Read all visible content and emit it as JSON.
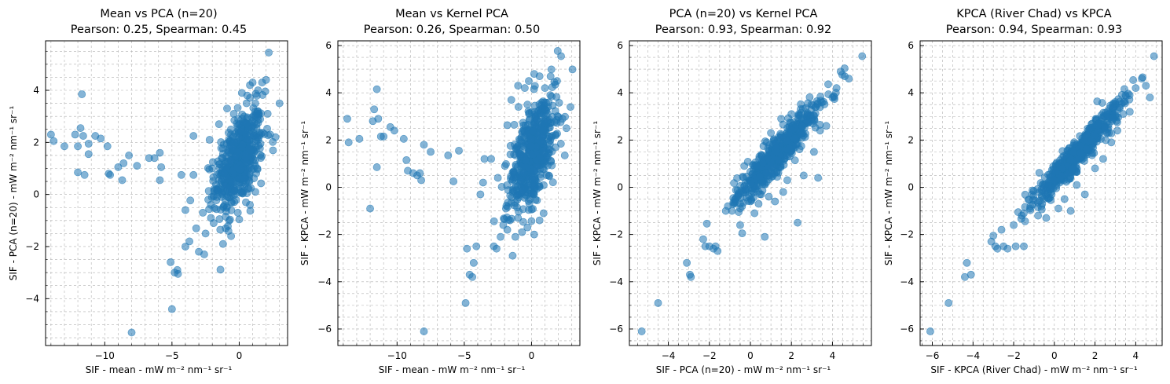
{
  "figure": {
    "background": "#ffffff"
  },
  "style": {
    "marker_color": "#1f77b4",
    "marker_alpha": 0.55,
    "grid_color": "#b0b0b0"
  },
  "chart_data": [
    {
      "type": "scatter",
      "title": "Mean vs PCA (n=20)",
      "subtitle": "Pearson: 0.25, Spearman: 0.45",
      "xlabel": "SIF - mean - mW m⁻² nm⁻¹ sr⁻¹",
      "ylabel": "SIF - PCA (n=20) - mW m⁻² nm⁻¹ sr⁻¹",
      "xlim": [
        -14.4,
        3.6
      ],
      "ylim": [
        -5.8,
        5.9
      ],
      "xticks": [
        -10,
        -5,
        0
      ],
      "yticks": [
        -4,
        -2,
        0,
        2,
        4
      ],
      "grid": true,
      "cluster": {
        "cx": 0.0,
        "cy": 1.3,
        "sx": 0.9,
        "sy": 0.95,
        "r": 0.5,
        "n": 520
      },
      "points": [
        [
          -14,
          2.3
        ],
        [
          -13.8,
          2.05
        ],
        [
          -13,
          1.85
        ],
        [
          -12.2,
          2.3
        ],
        [
          -11.8,
          2.55
        ],
        [
          -11.7,
          3.85
        ],
        [
          -11.6,
          2.25
        ],
        [
          -11.2,
          1.95
        ],
        [
          -10.7,
          2.25
        ],
        [
          -10.3,
          2.15
        ],
        [
          -9.8,
          1.85
        ],
        [
          -9.7,
          0.8
        ],
        [
          -9.6,
          0.75
        ],
        [
          -9,
          1.05
        ],
        [
          -8.7,
          0.55
        ],
        [
          -8.6,
          1.2
        ],
        [
          -8.2,
          1.5
        ],
        [
          -8,
          -5.3
        ],
        [
          -7.6,
          1.1
        ],
        [
          -6.7,
          1.4
        ],
        [
          -6.3,
          1.4
        ],
        [
          -5.9,
          1.6
        ],
        [
          -5.8,
          1.05
        ],
        [
          -5.9,
          0.55
        ],
        [
          -12,
          0.85
        ],
        [
          -11.5,
          0.75
        ],
        [
          -11.2,
          1.55
        ],
        [
          -12,
          1.85
        ],
        [
          -5.1,
          -2.6
        ],
        [
          -5,
          -4.4
        ],
        [
          -4.8,
          -3.0
        ],
        [
          -4.6,
          -2.9
        ],
        [
          -4.55,
          -3.05
        ],
        [
          -4.3,
          0.75
        ],
        [
          -4,
          -0.6
        ],
        [
          -4,
          -2.0
        ],
        [
          -3.7,
          -1.8
        ],
        [
          -3.4,
          2.25
        ],
        [
          -3.4,
          0.75
        ],
        [
          -3.2,
          -1.3
        ],
        [
          -3.0,
          -2.2
        ],
        [
          -2.7,
          -0.7
        ],
        [
          -2.6,
          -2.3
        ],
        [
          -2.5,
          -1.5
        ],
        [
          -2.3,
          -0.2
        ],
        [
          -2.2,
          2.1
        ],
        [
          -2.1,
          -0.9
        ],
        [
          -2.0,
          1.0
        ],
        [
          -1.9,
          -1.1
        ],
        [
          -1.7,
          0.2
        ],
        [
          -1.5,
          2.7
        ],
        [
          -1.3,
          1.4
        ],
        [
          -1.2,
          -1.9
        ],
        [
          -1.0,
          -1.3
        ],
        [
          -0.9,
          3.3
        ],
        [
          -0.8,
          -1.4
        ],
        [
          -0.6,
          -1.6
        ],
        [
          -0.4,
          3.1
        ],
        [
          0.2,
          3.9
        ],
        [
          0.6,
          3.8
        ],
        [
          0.8,
          4.2
        ],
        [
          1.0,
          4.3
        ],
        [
          1.2,
          3.5
        ],
        [
          1.4,
          4.0
        ],
        [
          1.7,
          4.3
        ],
        [
          2.0,
          4.4
        ],
        [
          2.2,
          5.45
        ],
        [
          2.3,
          2.3
        ],
        [
          2.7,
          2.2
        ],
        [
          3.0,
          3.5
        ],
        [
          1.2,
          0.1
        ],
        [
          0.8,
          -0.4
        ],
        [
          0.5,
          -0.3
        ],
        [
          -0.1,
          -0.7
        ],
        [
          0.3,
          2.8
        ],
        [
          1.4,
          3.2
        ]
      ]
    },
    {
      "type": "scatter",
      "title": "Mean vs Kernel PCA",
      "subtitle": "Pearson: 0.26, Spearman: 0.50",
      "xlabel": "SIF - mean - mW m⁻² nm⁻¹ sr⁻¹",
      "ylabel": "SIF - KPCA - mW m⁻² nm⁻¹ sr⁻¹",
      "xlim": [
        -14.4,
        3.6
      ],
      "ylim": [
        -6.7,
        6.2
      ],
      "xticks": [
        -10,
        -5,
        0
      ],
      "yticks": [
        -6,
        -4,
        -2,
        0,
        2,
        4,
        6
      ],
      "grid": true,
      "cluster": {
        "cx": 0.1,
        "cy": 1.4,
        "sx": 0.9,
        "sy": 1.2,
        "r": 0.55,
        "n": 540
      },
      "points": [
        [
          -13.7,
          2.9
        ],
        [
          -13.6,
          1.9
        ],
        [
          -12.8,
          2.05
        ],
        [
          -12.0,
          -0.9
        ],
        [
          -11.8,
          2.8
        ],
        [
          -11.7,
          3.3
        ],
        [
          -11.5,
          4.15
        ],
        [
          -11.4,
          2.9
        ],
        [
          -11.2,
          2.15
        ],
        [
          -11.0,
          2.15
        ],
        [
          -10.5,
          2.55
        ],
        [
          -10.2,
          2.4
        ],
        [
          -9.5,
          2.05
        ],
        [
          -9.3,
          1.15
        ],
        [
          -9.2,
          0.7
        ],
        [
          -8.8,
          0.6
        ],
        [
          -8.5,
          0.5
        ],
        [
          -8.3,
          0.6
        ],
        [
          -8.2,
          0.3
        ],
        [
          -7.5,
          1.5
        ],
        [
          -6.2,
          1.35
        ],
        [
          -5.8,
          0.25
        ],
        [
          -5.4,
          1.55
        ],
        [
          -11.5,
          0.85
        ],
        [
          -8.0,
          -6.1
        ],
        [
          -8.0,
          1.8
        ],
        [
          -4.9,
          -4.9
        ],
        [
          -4.8,
          -2.6
        ],
        [
          -4.6,
          -3.7
        ],
        [
          -4.4,
          -3.8
        ],
        [
          -4.3,
          -3.2
        ],
        [
          -4.1,
          -2.5
        ],
        [
          -3.8,
          -0.3
        ],
        [
          -3.6,
          0.2
        ],
        [
          -3.5,
          1.2
        ],
        [
          -3.0,
          1.2
        ],
        [
          -2.8,
          -2.5
        ],
        [
          -2.6,
          -2.6
        ],
        [
          -2.5,
          0.4
        ],
        [
          -2.3,
          -2.1
        ],
        [
          -2.1,
          -1.6
        ],
        [
          -1.9,
          -0.9
        ],
        [
          -1.8,
          -1.8
        ],
        [
          -1.6,
          -1.4
        ],
        [
          -1.4,
          -2.9
        ],
        [
          -1.2,
          -2.1
        ],
        [
          -1.0,
          -1.3
        ],
        [
          -0.7,
          -1.9
        ],
        [
          -0.3,
          -1.7
        ],
        [
          0.2,
          -2.0
        ],
        [
          0.6,
          -1.4
        ],
        [
          0.9,
          -1.1
        ],
        [
          -0.5,
          4.2
        ],
        [
          -0.2,
          4.5
        ],
        [
          0.2,
          4.8
        ],
        [
          0.6,
          4.7
        ],
        [
          1.0,
          4.2
        ],
        [
          1.4,
          3.9
        ],
        [
          1.9,
          4.5
        ],
        [
          2.2,
          5.55
        ],
        [
          2.3,
          2.9
        ],
        [
          2.6,
          2.5
        ],
        [
          2.9,
          3.4
        ],
        [
          -1.5,
          3.7
        ],
        [
          -1.0,
          4.3
        ],
        [
          -0.3,
          3.5
        ],
        [
          1.7,
          4.45
        ]
      ]
    },
    {
      "type": "scatter",
      "title": "PCA (n=20) vs Kernel PCA",
      "subtitle": "Pearson: 0.93, Spearman: 0.92",
      "xlabel": "SIF - PCA (n=20) - mW m⁻² nm⁻¹ sr⁻¹",
      "ylabel": "SIF - KPCA - mW m⁻² nm⁻¹ sr⁻¹",
      "xlim": [
        -5.9,
        5.9
      ],
      "ylim": [
        -6.7,
        6.2
      ],
      "xticks": [
        -4,
        -2,
        0,
        2,
        4
      ],
      "yticks": [
        -6,
        -4,
        -2,
        0,
        2,
        4,
        6
      ],
      "grid": true,
      "cluster": {
        "cx": 1.3,
        "cy": 1.4,
        "sx": 1.0,
        "sy": 1.05,
        "r": 0.93,
        "n": 560
      },
      "points": [
        [
          -5.3,
          -6.1
        ],
        [
          -4.5,
          -4.9
        ],
        [
          -3.1,
          -3.2
        ],
        [
          -2.95,
          -3.7
        ],
        [
          -2.9,
          -3.8
        ],
        [
          -2.3,
          -2.2
        ],
        [
          -2.2,
          -2.5
        ],
        [
          -2.0,
          -2.5
        ],
        [
          -1.8,
          -2.6
        ],
        [
          -1.7,
          -2.5
        ],
        [
          -1.6,
          -2.7
        ],
        [
          -1.2,
          -1.0
        ],
        [
          -1.1,
          -0.8
        ],
        [
          -0.9,
          -1.0
        ],
        [
          -0.6,
          -0.3
        ],
        [
          -0.5,
          -0.9
        ],
        [
          -0.5,
          -1.6
        ],
        [
          -0.4,
          -1.95
        ],
        [
          -0.3,
          0.9
        ],
        [
          0.2,
          -1.1
        ],
        [
          0.4,
          -0.7
        ],
        [
          0.7,
          -2.1
        ],
        [
          0.9,
          -0.4
        ],
        [
          1.2,
          -0.6
        ],
        [
          1.6,
          -0.2
        ],
        [
          1.8,
          0.3
        ],
        [
          2.3,
          -1.5
        ],
        [
          2.6,
          0.5
        ],
        [
          3.1,
          1.5
        ],
        [
          3.3,
          0.4
        ],
        [
          3.4,
          2.4
        ],
        [
          3.7,
          2.6
        ],
        [
          4.0,
          3.8
        ],
        [
          4.2,
          4.2
        ],
        [
          4.4,
          4.9
        ],
        [
          4.6,
          4.7
        ],
        [
          4.8,
          4.6
        ],
        [
          5.45,
          5.55
        ],
        [
          -0.6,
          -0.35
        ],
        [
          0.0,
          0.15
        ],
        [
          0.3,
          0.9
        ],
        [
          0.8,
          1.9
        ],
        [
          1.0,
          2.3
        ],
        [
          1.5,
          2.9
        ],
        [
          2.0,
          3.1
        ]
      ]
    },
    {
      "type": "scatter",
      "title": "KPCA (River Chad) vs KPCA",
      "subtitle": "Pearson: 0.94, Spearman: 0.93",
      "xlabel": "SIF - KPCA (River Chad) - mW m⁻² nm⁻¹ sr⁻¹",
      "ylabel": "SIF - KPCA - mW m⁻² nm⁻¹ sr⁻¹",
      "xlim": [
        -6.6,
        5.3
      ],
      "ylim": [
        -6.7,
        6.2
      ],
      "xticks": [
        -6,
        -4,
        -2,
        0,
        2,
        4
      ],
      "yticks": [
        -6,
        -4,
        -2,
        0,
        2,
        4,
        6
      ],
      "grid": true,
      "cluster": {
        "cx": 1.1,
        "cy": 1.4,
        "sx": 1.05,
        "sy": 1.05,
        "r": 0.95,
        "n": 560
      },
      "points": [
        [
          -6.1,
          -6.1
        ],
        [
          -5.2,
          -4.9
        ],
        [
          -4.4,
          -3.8
        ],
        [
          -4.3,
          -3.2
        ],
        [
          -4.1,
          -3.7
        ],
        [
          -3.1,
          -2.3
        ],
        [
          -3.0,
          -2.05
        ],
        [
          -2.9,
          -2.5
        ],
        [
          -2.8,
          -2.6
        ],
        [
          -2.6,
          -1.8
        ],
        [
          -2.5,
          -2.5
        ],
        [
          -2.3,
          -2.6
        ],
        [
          -2.0,
          -1.6
        ],
        [
          -1.9,
          -2.5
        ],
        [
          -1.6,
          -1.2
        ],
        [
          -1.5,
          -2.5
        ],
        [
          -1.2,
          -0.9
        ],
        [
          -1.1,
          -0.3
        ],
        [
          -0.8,
          -1.2
        ],
        [
          -0.6,
          -0.7
        ],
        [
          -0.4,
          -1.3
        ],
        [
          -0.2,
          -0.1
        ],
        [
          0.2,
          -0.9
        ],
        [
          0.5,
          -0.5
        ],
        [
          0.8,
          -1.0
        ],
        [
          1.1,
          0.1
        ],
        [
          1.5,
          -0.3
        ],
        [
          2.0,
          0.8
        ],
        [
          2.4,
          1.2
        ],
        [
          2.8,
          1.9
        ],
        [
          3.1,
          2.4
        ],
        [
          3.4,
          3.6
        ],
        [
          3.7,
          3.9
        ],
        [
          4.0,
          4.2
        ],
        [
          4.3,
          4.6
        ],
        [
          4.5,
          4.3
        ],
        [
          4.7,
          3.8
        ],
        [
          4.9,
          5.55
        ],
        [
          -0.5,
          -0.2
        ],
        [
          0.0,
          0.3
        ],
        [
          0.4,
          0.8
        ]
      ]
    }
  ]
}
